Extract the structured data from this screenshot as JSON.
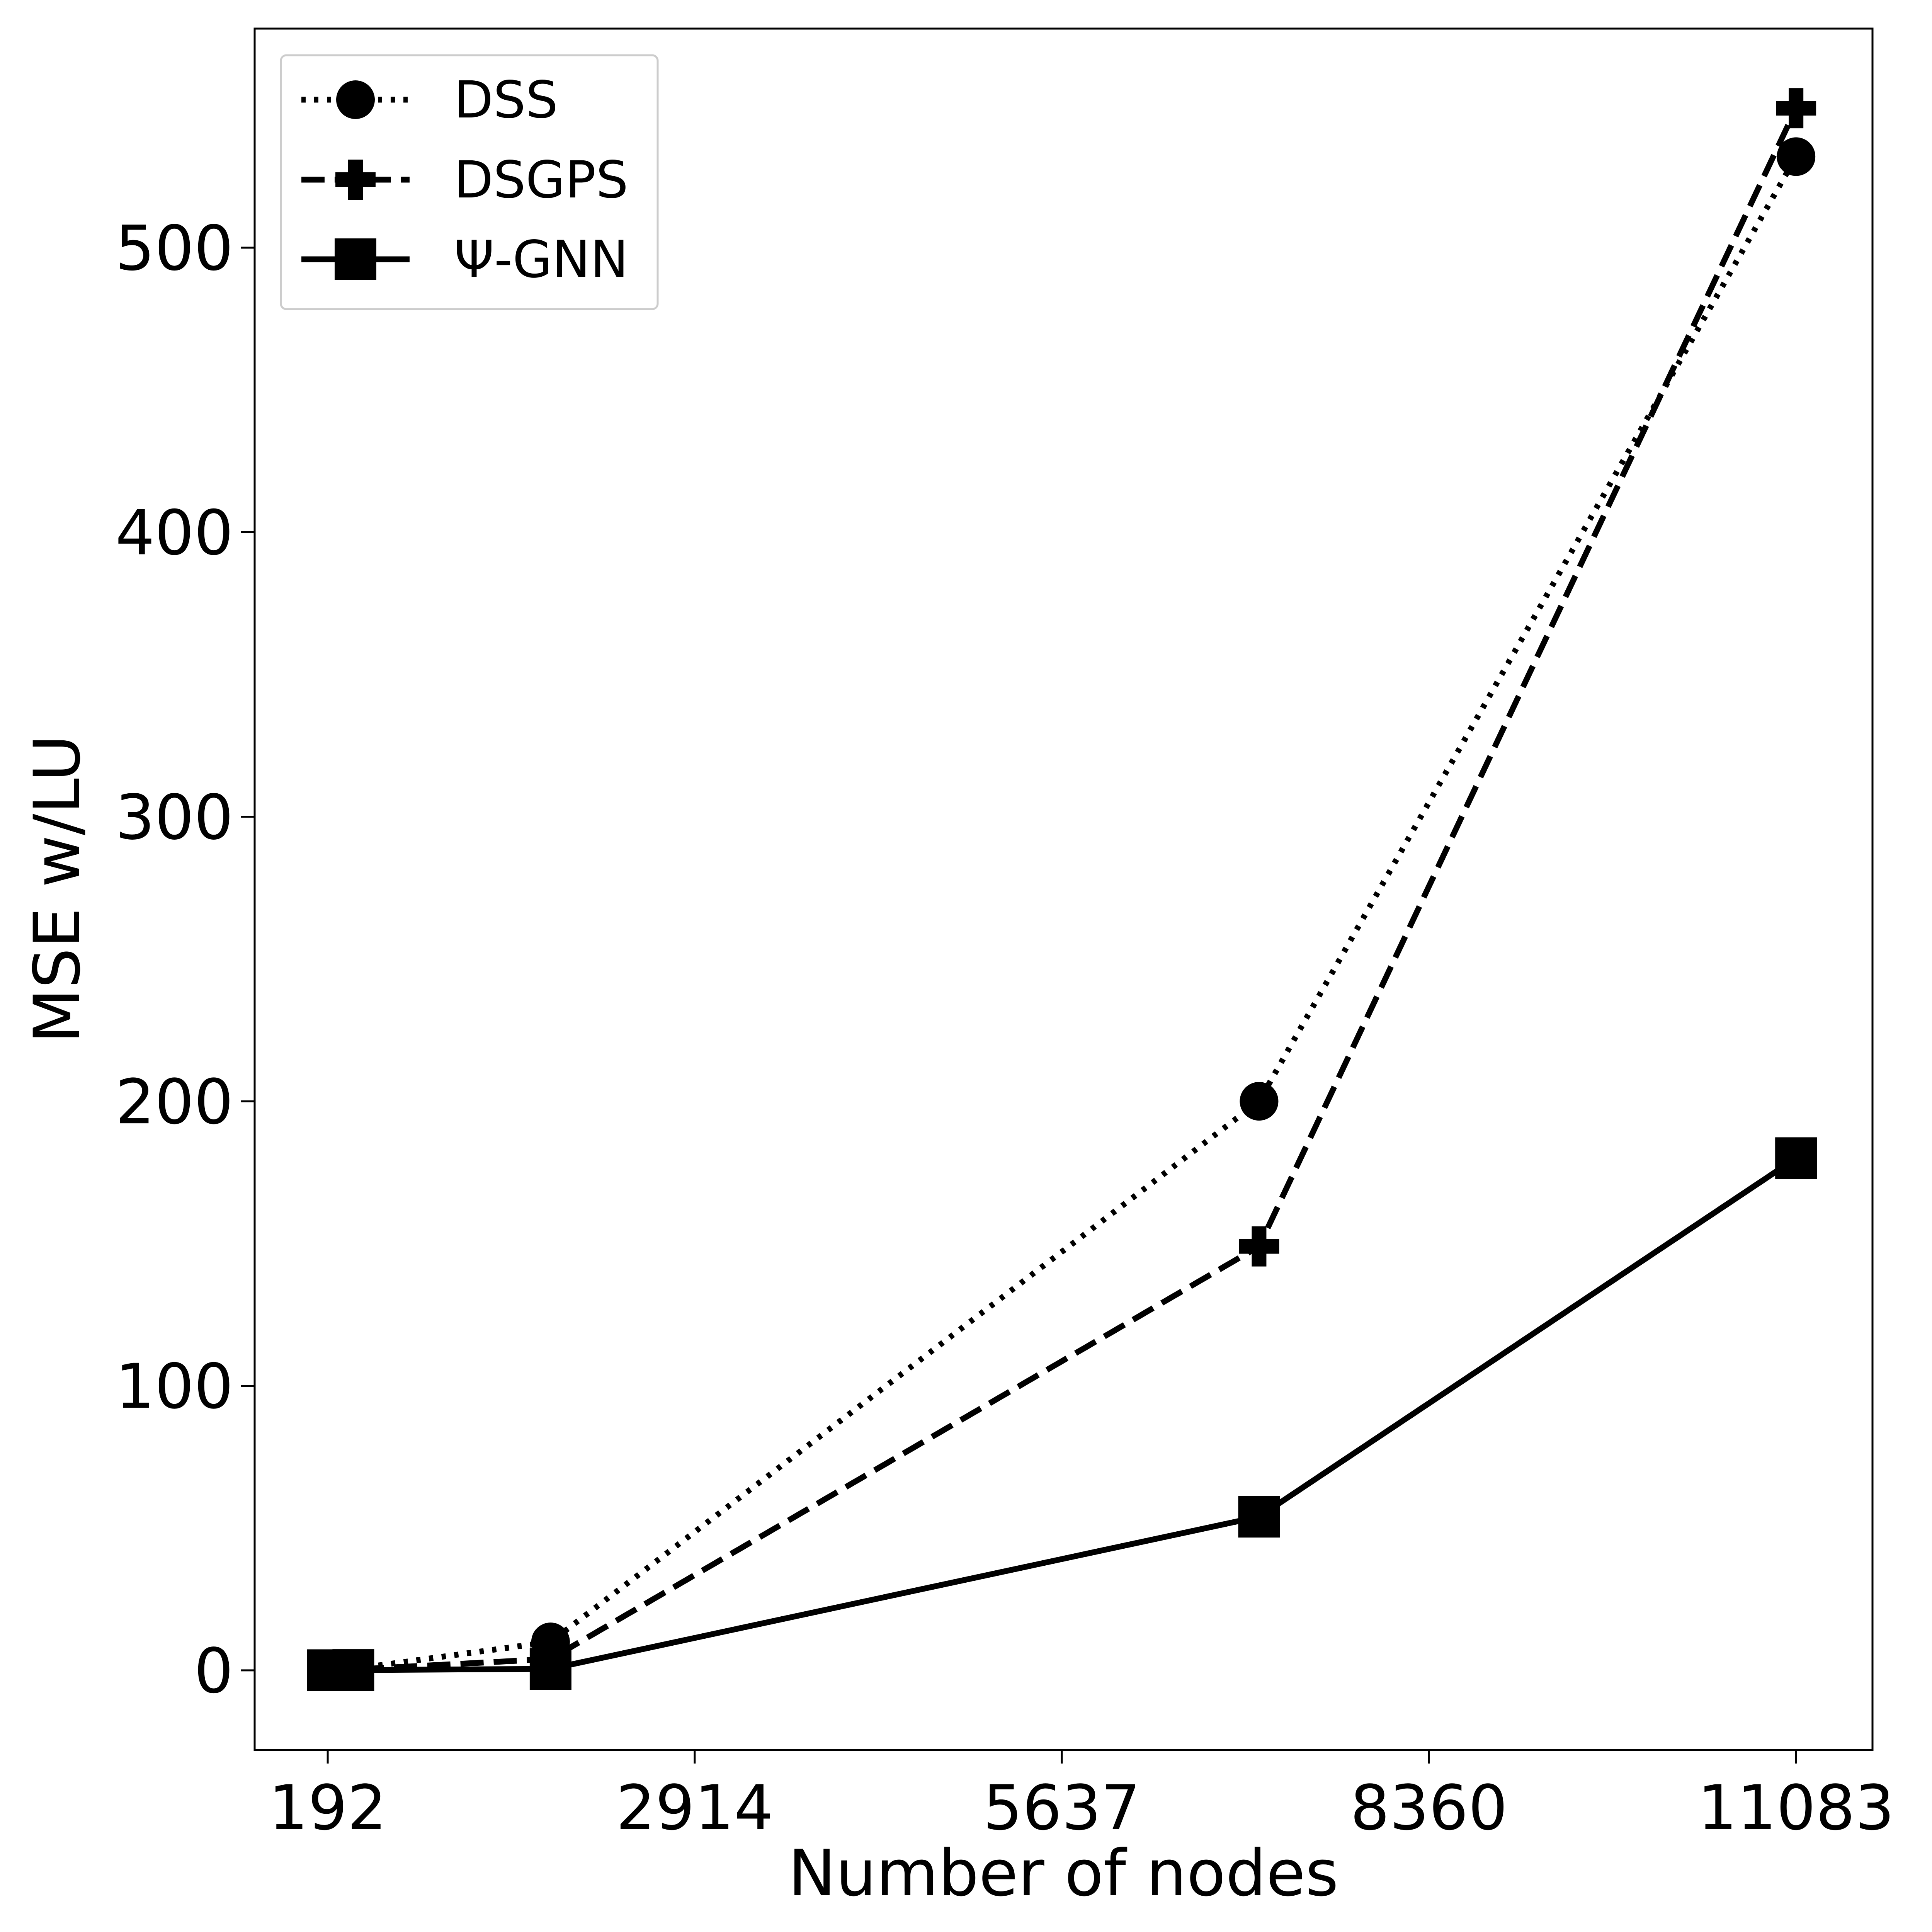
{
  "chart_data": {
    "type": "line",
    "title": "",
    "xlabel": "Number of nodes",
    "ylabel": "MSE w/LU",
    "xlim": [
      -350,
      11650
    ],
    "ylim": [
      -28,
      577
    ],
    "xticks": [
      192,
      2914,
      5637,
      8360,
      11083
    ],
    "yticks": [
      0,
      100,
      200,
      300,
      400,
      500
    ],
    "grid": false,
    "legend_position": "upper-left",
    "series": [
      {
        "name": "DSS",
        "line_style": "dotted",
        "marker": "circle",
        "color": "#000000",
        "x": [
          192,
          382,
          1845,
          7100,
          11083
        ],
        "y": [
          0.2,
          0.5,
          10,
          200,
          532
        ]
      },
      {
        "name": "DSGPS",
        "line_style": "dashed",
        "marker": "plus",
        "color": "#000000",
        "x": [
          192,
          382,
          1845,
          7100,
          11083
        ],
        "y": [
          0.1,
          0.3,
          4,
          149,
          549
        ]
      },
      {
        "name": "Ψ-GNN",
        "line_style": "solid",
        "marker": "square",
        "color": "#000000",
        "x": [
          192,
          382,
          1845,
          7100,
          11083
        ],
        "y": [
          0.05,
          0.1,
          0.5,
          54,
          180
        ]
      }
    ]
  }
}
